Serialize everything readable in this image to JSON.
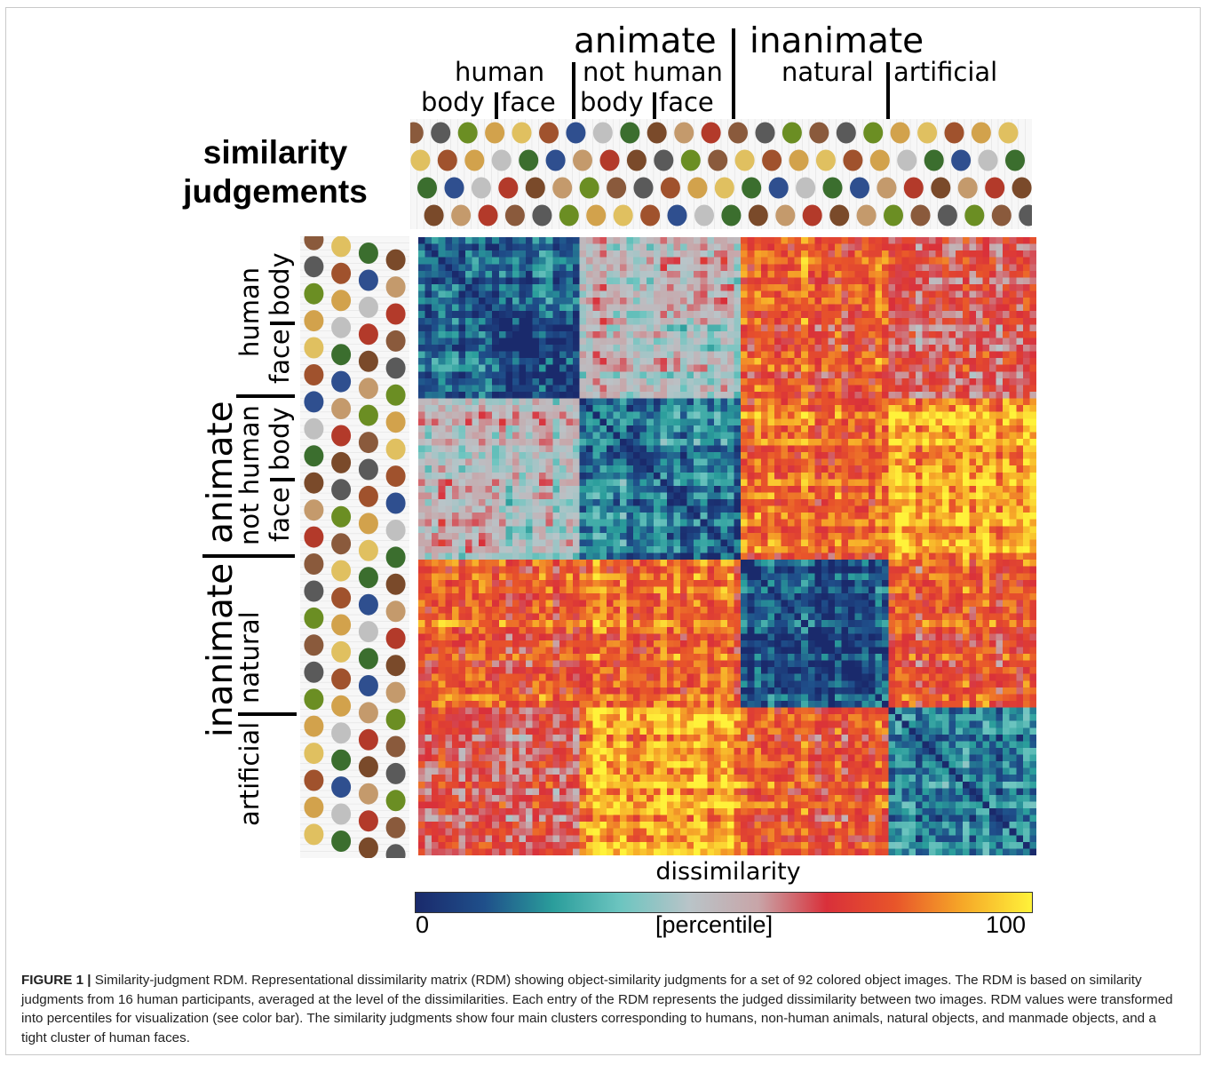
{
  "figure": {
    "title_line1": "similarity",
    "title_line2": "judgements",
    "top_headers": {
      "animate": "animate",
      "inanimate": "inanimate",
      "human": "human",
      "not_human": "not human",
      "natural": "natural",
      "artificial": "artificial",
      "body1": "body",
      "face1": "face",
      "body2": "body",
      "face2": "face"
    },
    "left_headers": {
      "animate": "animate",
      "inanimate": "inanimate",
      "human": "human",
      "not_human": "not human",
      "natural": "natural",
      "artificial": "artificial",
      "body1": "body",
      "face1": "face",
      "body2": "body",
      "face2": "face"
    },
    "colorbar": {
      "label": "dissimilarity",
      "min_label": "0",
      "max_label": "100",
      "unit_label": "[percentile]",
      "colors": [
        "#1a2a6c",
        "#1f4f8a",
        "#2a9d9b",
        "#6dc5c0",
        "#b9c4c8",
        "#c8a5a8",
        "#d9303a",
        "#e8552a",
        "#f6a928",
        "#fff23a"
      ]
    },
    "icon_colors": [
      "#8a5a3c",
      "#c49a6c",
      "#3b6e2e",
      "#d2a24c",
      "#5a5a5a",
      "#b33a2a",
      "#2f4f8f",
      "#e0c060",
      "#6b8e23",
      "#7a4a2a",
      "#c0c0c0",
      "#a0522d"
    ]
  },
  "chart_data": {
    "type": "heatmap",
    "title": "similarity judgements",
    "n_items": 92,
    "value_label": "dissimilarity",
    "value_unit": "[percentile]",
    "value_range": [
      0,
      100
    ],
    "categories": [
      {
        "name": "human body",
        "count": 12
      },
      {
        "name": "human face",
        "count": 12
      },
      {
        "name": "not human body",
        "count": 12
      },
      {
        "name": "not human face",
        "count": 12
      },
      {
        "name": "natural",
        "count": 22
      },
      {
        "name": "artificial",
        "count": 22
      }
    ],
    "block_mean_percentile": [
      [
        10,
        12,
        45,
        48,
        76,
        64
      ],
      [
        12,
        3,
        48,
        42,
        76,
        64
      ],
      [
        45,
        48,
        15,
        18,
        80,
        88
      ],
      [
        48,
        42,
        18,
        12,
        80,
        88
      ],
      [
        76,
        76,
        80,
        80,
        12,
        76
      ],
      [
        64,
        64,
        88,
        88,
        76,
        18
      ]
    ]
  },
  "caption": {
    "label": "FIGURE 1 |",
    "text": "Similarity-judgment RDM. Representational dissimilarity matrix (RDM) showing object-similarity judgments for a set of 92 colored object images. The RDM is based on similarity judgments from 16 human participants, averaged at the level of the dissimilarities. Each entry of the RDM represents the judged dissimilarity between two images. RDM values were transformed into percentiles for visualization (see color bar). The similarity judgments show four main clusters corresponding to humans, non-human animals, natural objects, and manmade objects, and a tight cluster of human faces."
  }
}
